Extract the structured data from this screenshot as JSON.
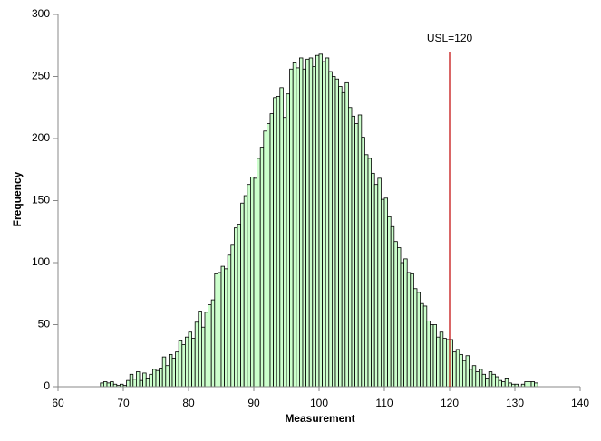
{
  "chart_data": {
    "type": "histogram",
    "x_label": "Measurement",
    "y_label": "Frequency",
    "bins": [
      66.5,
      67,
      67.5,
      68,
      68.5,
      69,
      69.5,
      70,
      70.5,
      71,
      71.5,
      72,
      72.5,
      73,
      73.5,
      74,
      74.5,
      75,
      75.5,
      76,
      76.5,
      77,
      77.5,
      78,
      78.5,
      79,
      79.5,
      80,
      80.5,
      81,
      81.5,
      82,
      82.5,
      83,
      83.5,
      84,
      84.5,
      85,
      85.5,
      86,
      86.5,
      87,
      87.5,
      88,
      88.5,
      89,
      89.5,
      90,
      90.5,
      91,
      91.5,
      92,
      92.5,
      93,
      93.5,
      94,
      94.5,
      95,
      95.5,
      96,
      96.5,
      97,
      97.5,
      98,
      98.5,
      99,
      99.5,
      100,
      100.5,
      101,
      101.5,
      102,
      102.5,
      103,
      103.5,
      104,
      104.5,
      105,
      105.5,
      106,
      106.5,
      107,
      107.5,
      108,
      108.5,
      109,
      109.5,
      110,
      110.5,
      111,
      111.5,
      112,
      112.5,
      113,
      113.5,
      114,
      114.5,
      115,
      115.5,
      116,
      116.5,
      117,
      117.5,
      118,
      118.5,
      119,
      119.5,
      120,
      120.5,
      121,
      121.5,
      122,
      122.5,
      123,
      123.5,
      124,
      124.5,
      125,
      125.5,
      126,
      126.5,
      127,
      127.5,
      128,
      128.5,
      129,
      129.5,
      130,
      130.5,
      131,
      131.5,
      132,
      132.5,
      133,
      133.5
    ],
    "values": [
      3,
      4,
      3,
      4,
      2,
      1,
      2,
      1,
      5,
      10,
      6,
      12,
      5,
      11,
      7,
      10,
      14,
      13,
      15,
      24,
      17,
      26,
      23,
      28,
      37,
      34,
      40,
      44,
      39,
      52,
      61,
      48,
      60,
      66,
      70,
      91,
      92,
      97,
      95,
      106,
      114,
      128,
      131,
      148,
      154,
      163,
      169,
      168,
      184,
      193,
      206,
      212,
      220,
      233,
      234,
      241,
      217,
      236,
      256,
      261,
      257,
      265,
      256,
      264,
      265,
      258,
      267,
      268,
      262,
      265,
      254,
      250,
      248,
      242,
      237,
      245,
      225,
      218,
      212,
      219,
      201,
      187,
      184,
      172,
      163,
      168,
      151,
      152,
      137,
      129,
      117,
      112,
      100,
      103,
      92,
      91,
      79,
      76,
      67,
      65,
      53,
      50,
      50,
      40,
      44,
      39,
      38,
      38,
      28,
      30,
      26,
      21,
      25,
      14,
      17,
      12,
      14,
      10,
      7,
      12,
      10,
      8,
      5,
      4,
      7,
      3,
      2,
      2,
      0,
      2,
      4,
      4,
      4,
      3
    ],
    "color": "#ccffcc",
    "xlim": [
      60,
      140
    ],
    "xticks": [
      60,
      70,
      80,
      90,
      100,
      110,
      120,
      130,
      140
    ],
    "ylim": [
      0,
      300
    ],
    "yticks": [
      0,
      50,
      100,
      150,
      200,
      250,
      300
    ],
    "usl": {
      "value": 120,
      "label": "USL=120",
      "color": "#c00000"
    }
  }
}
